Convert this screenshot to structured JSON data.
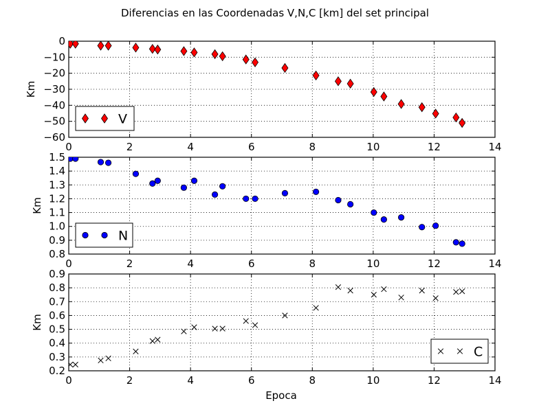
{
  "figure": {
    "title": "Diferencias en las Coordenadas V,N,C [km] del set principal",
    "xlabel": "Epoca"
  },
  "chart_data": [
    {
      "type": "scatter",
      "ylabel": "Km",
      "xlim": [
        0,
        14
      ],
      "ylim": [
        -60,
        0
      ],
      "xticks": [
        0,
        2,
        4,
        6,
        8,
        10,
        12,
        14
      ],
      "yticks": [
        0,
        -10,
        -20,
        -30,
        -40,
        -50,
        -60
      ],
      "ytick_labels": [
        "0",
        "−10",
        "−20",
        "−30",
        "−40",
        "−50",
        "−60"
      ],
      "grid": true,
      "legend_position": "lower-left",
      "marker": "diamond",
      "color": "#ff0000",
      "series": [
        {
          "name": "V",
          "x": [
            0.05,
            0.22,
            1.05,
            1.3,
            2.2,
            2.75,
            2.92,
            3.78,
            4.12,
            4.8,
            5.05,
            5.82,
            6.12,
            7.1,
            8.12,
            8.85,
            9.25,
            10.02,
            10.35,
            10.92,
            11.6,
            12.05,
            12.72,
            12.92
          ],
          "y": [
            -1.6,
            -1.6,
            -2.8,
            -2.8,
            -4.0,
            -4.8,
            -5.2,
            -6.2,
            -7.0,
            -8.1,
            -9.4,
            -11.4,
            -13.2,
            -16.7,
            -21.4,
            -25.0,
            -26.5,
            -31.7,
            -34.5,
            -39.2,
            -41.2,
            -45.2,
            -47.6,
            -51.0
          ]
        }
      ]
    },
    {
      "type": "scatter",
      "ylabel": "Km",
      "xlim": [
        0,
        14
      ],
      "ylim": [
        0.8,
        1.5
      ],
      "xticks": [
        0,
        2,
        4,
        6,
        8,
        10,
        12,
        14
      ],
      "yticks": [
        0.8,
        0.9,
        1.0,
        1.1,
        1.2,
        1.3,
        1.4,
        1.5
      ],
      "ytick_labels": [
        "0.8",
        "0.9",
        "1.0",
        "1.1",
        "1.2",
        "1.3",
        "1.4",
        "1.5"
      ],
      "grid": true,
      "legend_position": "lower-left",
      "marker": "circle",
      "color": "#0000ff",
      "series": [
        {
          "name": "N",
          "x": [
            0.05,
            0.22,
            1.05,
            1.3,
            2.2,
            2.75,
            2.92,
            3.78,
            4.12,
            4.8,
            5.05,
            5.82,
            6.12,
            7.1,
            8.12,
            8.85,
            9.25,
            10.02,
            10.35,
            10.92,
            11.6,
            12.05,
            12.72,
            12.92
          ],
          "y": [
            1.49,
            1.49,
            1.465,
            1.46,
            1.38,
            1.31,
            1.33,
            1.28,
            1.33,
            1.23,
            1.29,
            1.2,
            1.2,
            1.24,
            1.25,
            1.19,
            1.16,
            1.1,
            1.05,
            1.065,
            0.995,
            1.005,
            0.885,
            0.875
          ]
        }
      ]
    },
    {
      "type": "scatter",
      "ylabel": "Km",
      "xlim": [
        0,
        14
      ],
      "ylim": [
        0.2,
        0.9
      ],
      "xticks": [
        0,
        2,
        4,
        6,
        8,
        10,
        12,
        14
      ],
      "yticks": [
        0.2,
        0.3,
        0.4,
        0.5,
        0.6,
        0.7,
        0.8,
        0.9
      ],
      "ytick_labels": [
        "0.2",
        "0.3",
        "0.4",
        "0.5",
        "0.6",
        "0.7",
        "0.8",
        "0.9"
      ],
      "grid": true,
      "legend_position": "lower-right",
      "marker": "x",
      "color": "#000000",
      "series": [
        {
          "name": "C",
          "x": [
            0.05,
            0.22,
            1.05,
            1.3,
            2.2,
            2.75,
            2.92,
            3.78,
            4.12,
            4.8,
            5.05,
            5.82,
            6.12,
            7.1,
            8.12,
            8.85,
            9.25,
            10.02,
            10.35,
            10.92,
            11.6,
            12.05,
            12.72,
            12.92
          ],
          "y": [
            0.245,
            0.245,
            0.275,
            0.29,
            0.34,
            0.415,
            0.425,
            0.485,
            0.515,
            0.505,
            0.505,
            0.56,
            0.53,
            0.6,
            0.655,
            0.805,
            0.78,
            0.75,
            0.79,
            0.73,
            0.78,
            0.725,
            0.77,
            0.775
          ]
        }
      ]
    }
  ]
}
